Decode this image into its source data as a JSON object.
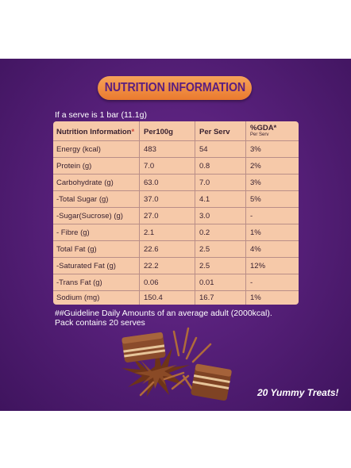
{
  "banner": {
    "title": "NUTRITION INFORMATION"
  },
  "serve_note": "If a serve is 1 bar (11.1g)",
  "table": {
    "headers": [
      "Nutrition Information",
      "*",
      "Per100g",
      "Per Serv",
      "%GDA*",
      "Per Serv"
    ],
    "rows": [
      [
        "Energy (kcal)",
        "483",
        "54",
        "3%"
      ],
      [
        "Protein (g)",
        "7.0",
        "0.8",
        "2%"
      ],
      [
        "Carbohydrate (g)",
        "63.0",
        "7.0",
        "3%"
      ],
      [
        "-Total Sugar (g)",
        "37.0",
        "4.1",
        "5%"
      ],
      [
        "-Sugar(Sucrose) (g)",
        "27.0",
        "3.0",
        "-"
      ],
      [
        "- Fibre (g)",
        "2.1",
        "0.2",
        "1%"
      ],
      [
        "Total Fat (g)",
        "22.6",
        "2.5",
        "4%"
      ],
      [
        "-Saturated Fat (g)",
        "22.2",
        "2.5",
        "12%"
      ],
      [
        "-Trans Fat (g)",
        "0.06",
        "0.01",
        "-"
      ],
      [
        "Sodium (mg)",
        "150.4",
        "16.7",
        "1%"
      ]
    ]
  },
  "footnote": {
    "line1": "##Guideline Daily Amounts of an average adult (2000kcal).",
    "line2": "Pack contains 20 serves"
  },
  "tagline": "20 Yummy Treats!",
  "colors": {
    "panel": "#57207a",
    "banner": "#ea7a2e",
    "banner_text": "#5a1f80",
    "table_bg": "#f6c9a9",
    "star": "#d24a3a"
  },
  "image": {
    "name": "chocolate-wafer-image"
  }
}
